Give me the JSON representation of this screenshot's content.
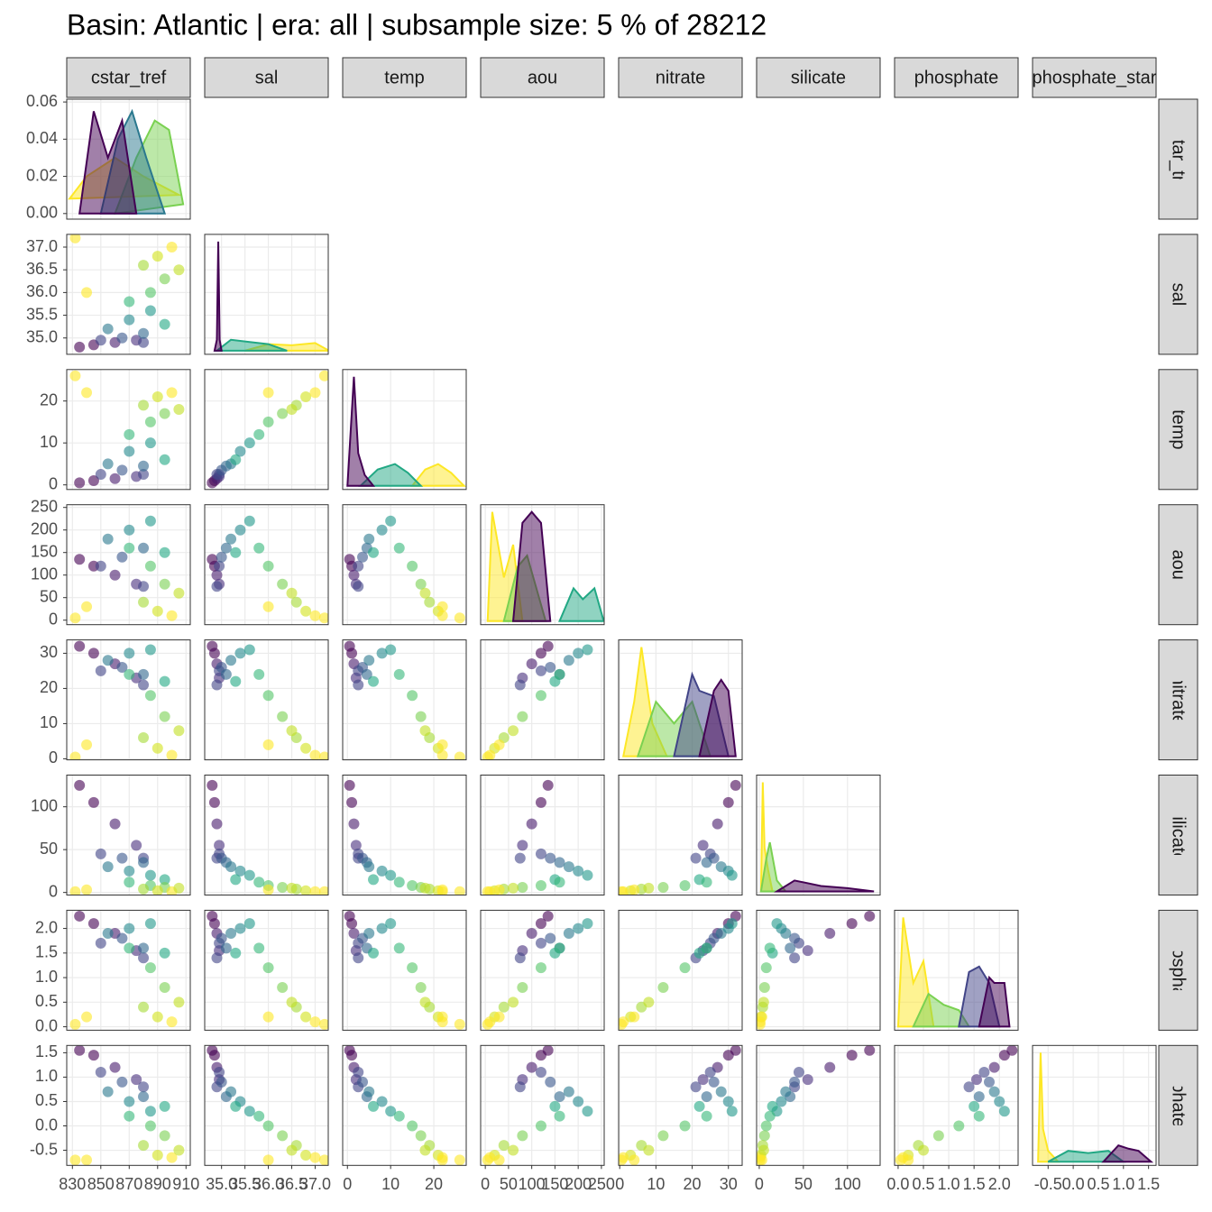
{
  "chart_data": {
    "type": "pairs",
    "title": "Basin: Atlantic | era: all | subsample size: 5 % of 28212",
    "grid": true,
    "variables": [
      {
        "name": "cstar_tref",
        "lim": [
          826,
          913
        ],
        "ticks": [
          830,
          850,
          870,
          890,
          910
        ]
      },
      {
        "name": "sal",
        "lim": [
          34.64,
          37.28
        ],
        "ticks": [
          {
            "value": 35,
            "label": "35.0"
          },
          35.5,
          {
            "value": 36,
            "label": "36.0"
          },
          36.5,
          {
            "value": 37,
            "label": "37.0"
          }
        ]
      },
      {
        "name": "temp",
        "lim": [
          -1.1,
          27.5
        ],
        "ticks": [
          0,
          10,
          20
        ]
      },
      {
        "name": "aou",
        "lim": [
          -10,
          256
        ],
        "ticks": [
          0,
          50,
          100,
          150,
          200,
          250
        ]
      },
      {
        "name": "nitrate",
        "lim": [
          -0.3,
          33.8
        ],
        "ticks": [
          0,
          10,
          20,
          30
        ]
      },
      {
        "name": "silicate",
        "lim": [
          -3,
          137
        ],
        "ticks": [
          0,
          50,
          100
        ]
      },
      {
        "name": "phosphate",
        "lim": [
          -0.07,
          2.37
        ],
        "ticks": [
          {
            "value": 0,
            "label": "0.0"
          },
          0.5,
          {
            "value": 1,
            "label": "1.0"
          },
          1.5,
          {
            "value": 2,
            "label": "2.0"
          }
        ]
      },
      {
        "name": "phosphate_star",
        "lim": [
          -0.81,
          1.65
        ],
        "ticks": [
          -0.5,
          {
            "value": 0,
            "label": "0.0"
          },
          0.5,
          {
            "value": 1,
            "label": "1.0"
          },
          1.5
        ]
      }
    ],
    "density_ylim": [
      -0.003,
      0.0615
    ],
    "density_ticks": [
      {
        "value": 0,
        "label": "0.00"
      },
      0.02,
      0.04,
      0.06
    ],
    "observations": [
      {
        "color": "#440154",
        "values": [
          835,
          34.8,
          0.5,
          135,
          32,
          125,
          2.25,
          1.55
        ]
      },
      {
        "color": "#440154",
        "values": [
          845,
          34.85,
          1,
          120,
          30,
          105,
          2.1,
          1.45
        ]
      },
      {
        "color": "#481a6c",
        "values": [
          860,
          34.9,
          1.5,
          100,
          27,
          80,
          1.9,
          1.2
        ]
      },
      {
        "color": "#472f7d",
        "values": [
          875,
          34.95,
          2,
          80,
          23,
          55,
          1.55,
          0.95
        ]
      },
      {
        "color": "#414487",
        "values": [
          880,
          34.9,
          2.5,
          75,
          21,
          40,
          1.4,
          0.8
        ]
      },
      {
        "color": "#414487",
        "values": [
          850,
          34.95,
          2.5,
          120,
          25,
          45,
          1.7,
          1.1
        ]
      },
      {
        "color": "#39568c",
        "values": [
          865,
          35.0,
          3.5,
          140,
          26,
          40,
          1.8,
          0.9
        ]
      },
      {
        "color": "#31688e",
        "values": [
          880,
          35.1,
          4.5,
          160,
          24,
          35,
          1.6,
          0.6
        ]
      },
      {
        "color": "#2a788e",
        "values": [
          855,
          35.2,
          5,
          180,
          28,
          30,
          1.9,
          0.7
        ]
      },
      {
        "color": "#23888e",
        "values": [
          870,
          35.4,
          8,
          200,
          30,
          25,
          2.0,
          0.5
        ]
      },
      {
        "color": "#1f988b",
        "values": [
          885,
          35.6,
          10,
          220,
          31,
          20,
          2.1,
          0.3
        ]
      },
      {
        "color": "#22a884",
        "values": [
          895,
          35.3,
          6,
          150,
          22,
          15,
          1.5,
          0.4
        ]
      },
      {
        "color": "#35b779",
        "values": [
          870,
          35.8,
          12,
          160,
          24,
          12,
          1.6,
          0.2
        ]
      },
      {
        "color": "#54c568",
        "values": [
          885,
          36.0,
          15,
          120,
          18,
          8,
          1.2,
          0.0
        ]
      },
      {
        "color": "#7ad151",
        "values": [
          895,
          36.3,
          17,
          80,
          12,
          6,
          0.8,
          -0.2
        ]
      },
      {
        "color": "#a5db36",
        "values": [
          880,
          36.6,
          19,
          40,
          6,
          4,
          0.4,
          -0.4
        ]
      },
      {
        "color": "#d2e21b",
        "values": [
          890,
          36.8,
          21,
          20,
          3,
          2,
          0.2,
          -0.6
        ]
      },
      {
        "color": "#fde725",
        "values": [
          900,
          37.0,
          22,
          10,
          1,
          1,
          0.1,
          -0.65
        ]
      },
      {
        "color": "#c2df23",
        "values": [
          905,
          36.5,
          18,
          60,
          8,
          5,
          0.5,
          -0.5
        ]
      },
      {
        "color": "#fde725",
        "values": [
          832,
          37.2,
          26,
          5,
          0.5,
          1,
          0.05,
          -0.7
        ]
      },
      {
        "color": "#fde725",
        "values": [
          840,
          36.0,
          22,
          30,
          4,
          3,
          0.2,
          -0.7
        ]
      }
    ],
    "densities": [
      [
        {
          "color": "#fde725",
          "x": [
            828,
            840,
            860,
            880,
            905
          ],
          "y": [
            0.008,
            0.02,
            0.03,
            0.02,
            0.01
          ]
        },
        {
          "color": "#7ad151",
          "x": [
            860,
            875,
            888,
            898,
            908
          ],
          "y": [
            0,
            0.03,
            0.05,
            0.045,
            0.005
          ]
        },
        {
          "color": "#2a788e",
          "x": [
            850,
            862,
            872,
            882,
            895
          ],
          "y": [
            0,
            0.04,
            0.055,
            0.03,
            0
          ]
        },
        {
          "color": "#440154",
          "x": [
            835,
            845,
            855,
            865,
            875
          ],
          "y": [
            0,
            0.055,
            0.03,
            0.05,
            0
          ]
        }
      ],
      [
        {
          "color": "#fde725",
          "x": [
            35.5,
            36.0,
            36.5,
            37.0,
            37.3
          ],
          "y": [
            0,
            0.06,
            0.05,
            0.07,
            0
          ]
        },
        {
          "color": "#22a884",
          "x": [
            34.9,
            35.2,
            35.6,
            36.0,
            36.4
          ],
          "y": [
            0,
            0.1,
            0.08,
            0.06,
            0
          ]
        },
        {
          "color": "#440154",
          "x": [
            34.85,
            34.9,
            34.93,
            34.96,
            35.0
          ],
          "y": [
            0,
            0.1,
            1,
            0.1,
            0
          ]
        }
      ],
      [
        {
          "color": "#fde725",
          "x": [
            15,
            18,
            21,
            24,
            27
          ],
          "y": [
            0,
            0.15,
            0.2,
            0.12,
            0
          ]
        },
        {
          "color": "#22a884",
          "x": [
            3,
            7,
            11,
            14,
            17
          ],
          "y": [
            0,
            0.15,
            0.2,
            0.12,
            0
          ]
        },
        {
          "color": "#440154",
          "x": [
            0,
            1.5,
            2.5,
            4,
            6
          ],
          "y": [
            0,
            1,
            0.3,
            0.1,
            0
          ]
        }
      ],
      [
        {
          "color": "#fde725",
          "x": [
            5,
            15,
            40,
            60,
            80
          ],
          "y": [
            0,
            1,
            0.4,
            0.7,
            0
          ]
        },
        {
          "color": "#22a884",
          "x": [
            160,
            190,
            210,
            235,
            255
          ],
          "y": [
            0,
            0.3,
            0.2,
            0.3,
            0
          ]
        },
        {
          "color": "#7ad151",
          "x": [
            40,
            70,
            90,
            110,
            130
          ],
          "y": [
            0,
            0.5,
            0.6,
            0.3,
            0
          ]
        },
        {
          "color": "#440154",
          "x": [
            60,
            80,
            100,
            120,
            140
          ],
          "y": [
            0,
            0.9,
            1.0,
            0.9,
            0
          ]
        }
      ],
      [
        {
          "color": "#fde725",
          "x": [
            1,
            4,
            6,
            9,
            13
          ],
          "y": [
            0,
            0.5,
            1,
            0.3,
            0
          ]
        },
        {
          "color": "#7ad151",
          "x": [
            5,
            10,
            15,
            20,
            25
          ],
          "y": [
            0,
            0.5,
            0.3,
            0.5,
            0
          ]
        },
        {
          "color": "#414487",
          "x": [
            15,
            20,
            22,
            26,
            30
          ],
          "y": [
            0,
            0.75,
            0.6,
            0.55,
            0
          ]
        },
        {
          "color": "#440154",
          "x": [
            22,
            26,
            28,
            30,
            32
          ],
          "y": [
            0,
            0.6,
            0.7,
            0.6,
            0
          ]
        }
      ],
      [
        {
          "color": "#fde725",
          "x": [
            2,
            4,
            6,
            10,
            15
          ],
          "y": [
            0,
            1,
            0.4,
            0.2,
            0
          ]
        },
        {
          "color": "#7ad151",
          "x": [
            2,
            8,
            12,
            20,
            30
          ],
          "y": [
            0,
            0.3,
            0.45,
            0.1,
            0
          ]
        },
        {
          "color": "#440154",
          "x": [
            20,
            40,
            70,
            100,
            130
          ],
          "y": [
            0,
            0.1,
            0.05,
            0.03,
            0
          ]
        }
      ],
      [
        {
          "color": "#fde725",
          "x": [
            0,
            0.1,
            0.3,
            0.5,
            0.7
          ],
          "y": [
            0,
            1,
            0.4,
            0.6,
            0
          ]
        },
        {
          "color": "#7ad151",
          "x": [
            0.3,
            0.6,
            0.9,
            1.2,
            1.4
          ],
          "y": [
            0,
            0.3,
            0.2,
            0.15,
            0
          ]
        },
        {
          "color": "#414487",
          "x": [
            1.2,
            1.4,
            1.6,
            1.8,
            2.0
          ],
          "y": [
            0,
            0.5,
            0.55,
            0.4,
            0
          ]
        },
        {
          "color": "#440154",
          "x": [
            1.6,
            1.8,
            1.9,
            2.1,
            2.2
          ],
          "y": [
            0,
            0.45,
            0.4,
            0.4,
            0
          ]
        }
      ],
      [
        {
          "color": "#fde725",
          "x": [
            -0.7,
            -0.65,
            -0.6,
            -0.5,
            -0.3
          ],
          "y": [
            0,
            1,
            0.3,
            0.1,
            0
          ]
        },
        {
          "color": "#22a884",
          "x": [
            -0.5,
            -0.1,
            0.3,
            0.7,
            1.0
          ],
          "y": [
            0,
            0.1,
            0.08,
            0.1,
            0
          ]
        },
        {
          "color": "#440154",
          "x": [
            0.6,
            0.9,
            1.1,
            1.3,
            1.55
          ],
          "y": [
            0,
            0.15,
            0.12,
            0.1,
            0
          ]
        }
      ]
    ]
  }
}
